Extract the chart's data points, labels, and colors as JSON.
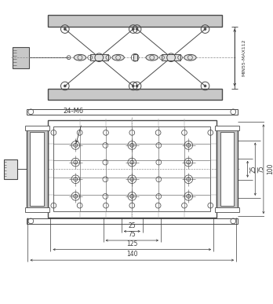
{
  "fig_width": 3.48,
  "fig_height": 3.87,
  "dpi": 100,
  "line_color": "#4a4a4a",
  "gray_fill": "#c8c8c8",
  "light_gray": "#e0e0e0",
  "dim_color": "#3a3a3a",
  "annotations": {
    "label_24M6": "24-M6",
    "dim_25_h": "25",
    "dim_75_h": "75",
    "dim_125": "125",
    "dim_140": "140",
    "dim_right_25": "25",
    "dim_right_75": "75",
    "dim_right_100": "100",
    "dim_minmax": "MIN55-MAX112"
  }
}
